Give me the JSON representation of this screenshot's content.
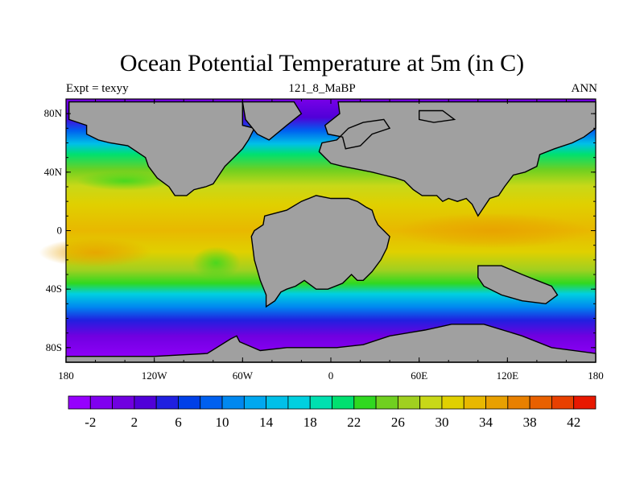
{
  "title": "Ocean Potential Temperature at 5m (in C)",
  "subtitle_left": "Expt = texyy",
  "subtitle_center": "121_8_MaBP",
  "subtitle_right": "ANN",
  "map": {
    "lon_range": [
      -180,
      180
    ],
    "lat_range": [
      -90,
      90
    ],
    "lat_ticks": [
      {
        "value": 80,
        "label": "80N"
      },
      {
        "value": 40,
        "label": "40N"
      },
      {
        "value": 0,
        "label": "0"
      },
      {
        "value": -40,
        "label": "40S"
      },
      {
        "value": -80,
        "label": "80S"
      }
    ],
    "lon_ticks": [
      {
        "value": -180,
        "label": "180"
      },
      {
        "value": -120,
        "label": "120W"
      },
      {
        "value": -60,
        "label": "60W"
      },
      {
        "value": 0,
        "label": "0"
      },
      {
        "value": 60,
        "label": "60E"
      },
      {
        "value": 120,
        "label": "120E"
      },
      {
        "value": 180,
        "label": "180"
      }
    ],
    "land_color": "#a0a0a0",
    "landmasses": [
      {
        "name": "north-america",
        "points": [
          [
            -178,
            88
          ],
          [
            -60,
            88
          ],
          [
            -60,
            72
          ],
          [
            -52,
            70
          ],
          [
            -56,
            62
          ],
          [
            -60,
            56
          ],
          [
            -66,
            50
          ],
          [
            -72,
            44
          ],
          [
            -76,
            38
          ],
          [
            -80,
            32
          ],
          [
            -85,
            30
          ],
          [
            -93,
            28
          ],
          [
            -98,
            24
          ],
          [
            -106,
            24
          ],
          [
            -110,
            30
          ],
          [
            -118,
            36
          ],
          [
            -124,
            44
          ],
          [
            -126,
            50
          ],
          [
            -138,
            58
          ],
          [
            -150,
            60
          ],
          [
            -158,
            62
          ],
          [
            -166,
            66
          ],
          [
            -166,
            72
          ],
          [
            -178,
            76
          ]
        ]
      },
      {
        "name": "europe-asia",
        "points": [
          [
            5,
            88
          ],
          [
            180,
            88
          ],
          [
            180,
            70
          ],
          [
            172,
            64
          ],
          [
            164,
            60
          ],
          [
            152,
            56
          ],
          [
            142,
            52
          ],
          [
            140,
            44
          ],
          [
            132,
            40
          ],
          [
            124,
            38
          ],
          [
            118,
            30
          ],
          [
            114,
            24
          ],
          [
            108,
            22
          ],
          [
            104,
            16
          ],
          [
            100,
            10
          ],
          [
            96,
            18
          ],
          [
            92,
            22
          ],
          [
            86,
            20
          ],
          [
            80,
            22
          ],
          [
            76,
            20
          ],
          [
            72,
            24
          ],
          [
            62,
            24
          ],
          [
            56,
            28
          ],
          [
            50,
            34
          ],
          [
            44,
            36
          ],
          [
            36,
            38
          ],
          [
            28,
            40
          ],
          [
            18,
            42
          ],
          [
            8,
            44
          ],
          [
            0,
            46
          ],
          [
            -4,
            50
          ],
          [
            -8,
            54
          ],
          [
            -6,
            60
          ],
          [
            4,
            62
          ],
          [
            12,
            70
          ],
          [
            22,
            74
          ],
          [
            36,
            76
          ],
          [
            40,
            70
          ],
          [
            28,
            66
          ],
          [
            20,
            58
          ],
          [
            10,
            56
          ],
          [
            8,
            64
          ],
          [
            -2,
            66
          ],
          [
            -4,
            72
          ],
          [
            6,
            80
          ]
        ]
      },
      {
        "name": "south-america-africa",
        "points": [
          [
            -45,
            10
          ],
          [
            -30,
            14
          ],
          [
            -20,
            20
          ],
          [
            -10,
            24
          ],
          [
            0,
            22
          ],
          [
            12,
            22
          ],
          [
            18,
            20
          ],
          [
            24,
            16
          ],
          [
            28,
            14
          ],
          [
            30,
            8
          ],
          [
            32,
            4
          ],
          [
            36,
            0
          ],
          [
            40,
            -4
          ],
          [
            38,
            -12
          ],
          [
            34,
            -20
          ],
          [
            28,
            -28
          ],
          [
            22,
            -34
          ],
          [
            18,
            -34
          ],
          [
            14,
            -30
          ],
          [
            8,
            -36
          ],
          [
            -2,
            -40
          ],
          [
            -10,
            -40
          ],
          [
            -18,
            -34
          ],
          [
            -24,
            -38
          ],
          [
            -30,
            -40
          ],
          [
            -34,
            -42
          ],
          [
            -38,
            -48
          ],
          [
            -44,
            -52
          ],
          [
            -44,
            -44
          ],
          [
            -48,
            -34
          ],
          [
            -52,
            -20
          ],
          [
            -54,
            -4
          ],
          [
            -52,
            0
          ],
          [
            -46,
            4
          ]
        ]
      },
      {
        "name": "australia",
        "points": [
          [
            100,
            -24
          ],
          [
            116,
            -24
          ],
          [
            130,
            -30
          ],
          [
            140,
            -34
          ],
          [
            150,
            -38
          ],
          [
            154,
            -44
          ],
          [
            146,
            -50
          ],
          [
            130,
            -48
          ],
          [
            116,
            -44
          ],
          [
            104,
            -38
          ],
          [
            100,
            -32
          ]
        ]
      },
      {
        "name": "antarctica",
        "points": [
          [
            -180,
            -90
          ],
          [
            180,
            -90
          ],
          [
            180,
            -84
          ],
          [
            150,
            -80
          ],
          [
            130,
            -72
          ],
          [
            104,
            -64
          ],
          [
            82,
            -64
          ],
          [
            64,
            -68
          ],
          [
            40,
            -72
          ],
          [
            22,
            -78
          ],
          [
            4,
            -80
          ],
          [
            -16,
            -80
          ],
          [
            -30,
            -80
          ],
          [
            -48,
            -82
          ],
          [
            -62,
            -76
          ],
          [
            -64,
            -72
          ],
          [
            -68,
            -74
          ],
          [
            -84,
            -84
          ],
          [
            -120,
            -86
          ],
          [
            -180,
            -86
          ]
        ]
      },
      {
        "name": "greenland-island",
        "points": [
          [
            -60,
            88
          ],
          [
            -25,
            88
          ],
          [
            -20,
            80
          ],
          [
            -30,
            72
          ],
          [
            -42,
            62
          ],
          [
            -50,
            66
          ],
          [
            -58,
            76
          ]
        ]
      },
      {
        "name": "arctic-island",
        "points": [
          [
            60,
            82
          ],
          [
            76,
            82
          ],
          [
            84,
            76
          ],
          [
            70,
            74
          ],
          [
            60,
            76
          ]
        ]
      }
    ]
  },
  "colorbar": {
    "colors": [
      "#9600fe",
      "#8000f0",
      "#7000e0",
      "#5000d8",
      "#2020e0",
      "#0040e8",
      "#0060f0",
      "#0088f0",
      "#00a8f0",
      "#00c0e8",
      "#00d0e0",
      "#00e0b0",
      "#00e070",
      "#30d820",
      "#70d020",
      "#a0d020",
      "#c8d818",
      "#e0d000",
      "#e8b800",
      "#e8a000",
      "#e88000",
      "#e86000",
      "#e84000",
      "#e81800"
    ],
    "labels": [
      "-2",
      "2",
      "6",
      "10",
      "14",
      "18",
      "22",
      "26",
      "30",
      "34",
      "38",
      "42"
    ]
  }
}
